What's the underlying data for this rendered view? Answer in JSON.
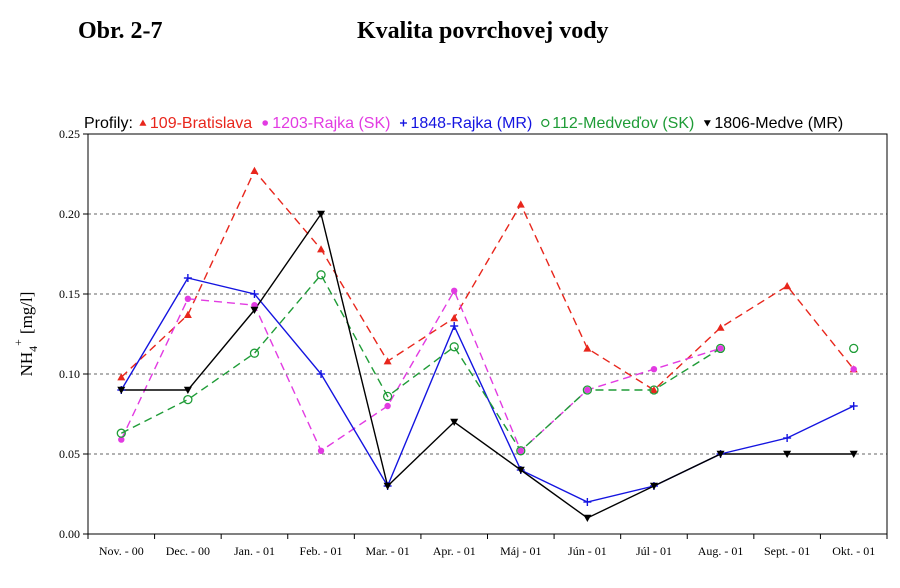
{
  "header": {
    "figure_label": "Obr. 2-7",
    "title": "Kvalita povrchovej vody"
  },
  "chart_data": {
    "type": "line",
    "legend_prefix": "Profily:",
    "ylabel_main": "NH",
    "ylabel_sub": "4",
    "ylabel_sup": "+",
    "ylabel_unit": "[mg/l]",
    "ylim": [
      0,
      0.25
    ],
    "yticks": [
      "0.00",
      "0.05",
      "0.10",
      "0.15",
      "0.20",
      "0.25"
    ],
    "grid": "horizontal dashed",
    "legend_position": "top",
    "categories": [
      "Nov. - 00",
      "Dec. - 00",
      "Jan. - 01",
      "Feb. - 01",
      "Mar. - 01",
      "Apr. - 01",
      "Máj - 01",
      "Jún - 01",
      "Júl - 01",
      "Aug. - 01",
      "Sept. - 01",
      "Okt. - 01"
    ],
    "series": [
      {
        "name": "109-Bratislava",
        "color": "#e8261c",
        "marker": "triangle-up",
        "dash": true,
        "values": [
          0.098,
          0.137,
          0.227,
          0.178,
          0.108,
          0.135,
          0.206,
          0.116,
          0.09,
          0.129,
          0.155,
          0.103
        ]
      },
      {
        "name": "1203-Rajka (SK)",
        "color": "#e23be2",
        "marker": "dot",
        "dash": true,
        "values": [
          0.059,
          0.147,
          0.143,
          0.052,
          0.08,
          0.152,
          0.052,
          0.09,
          0.103,
          0.116,
          null,
          0.103
        ]
      },
      {
        "name": "1848-Rajka (MR)",
        "color": "#1414e0",
        "marker": "plus",
        "dash": false,
        "values": [
          0.09,
          0.16,
          0.15,
          0.1,
          0.03,
          0.13,
          0.04,
          0.02,
          0.03,
          0.05,
          0.06,
          0.08
        ]
      },
      {
        "name": "112-Medveďov (SK)",
        "color": "#1f9c37",
        "marker": "circle-open",
        "dash": true,
        "values": [
          0.063,
          0.084,
          0.113,
          0.162,
          0.086,
          0.117,
          0.052,
          0.09,
          0.09,
          0.116,
          null,
          0.116
        ]
      },
      {
        "name": "1806-Medve (MR)",
        "color": "#000000",
        "marker": "triangle-down",
        "dash": false,
        "values": [
          0.09,
          0.09,
          0.14,
          0.2,
          0.03,
          0.07,
          0.04,
          0.01,
          0.03,
          0.05,
          0.05,
          0.05
        ]
      }
    ]
  }
}
